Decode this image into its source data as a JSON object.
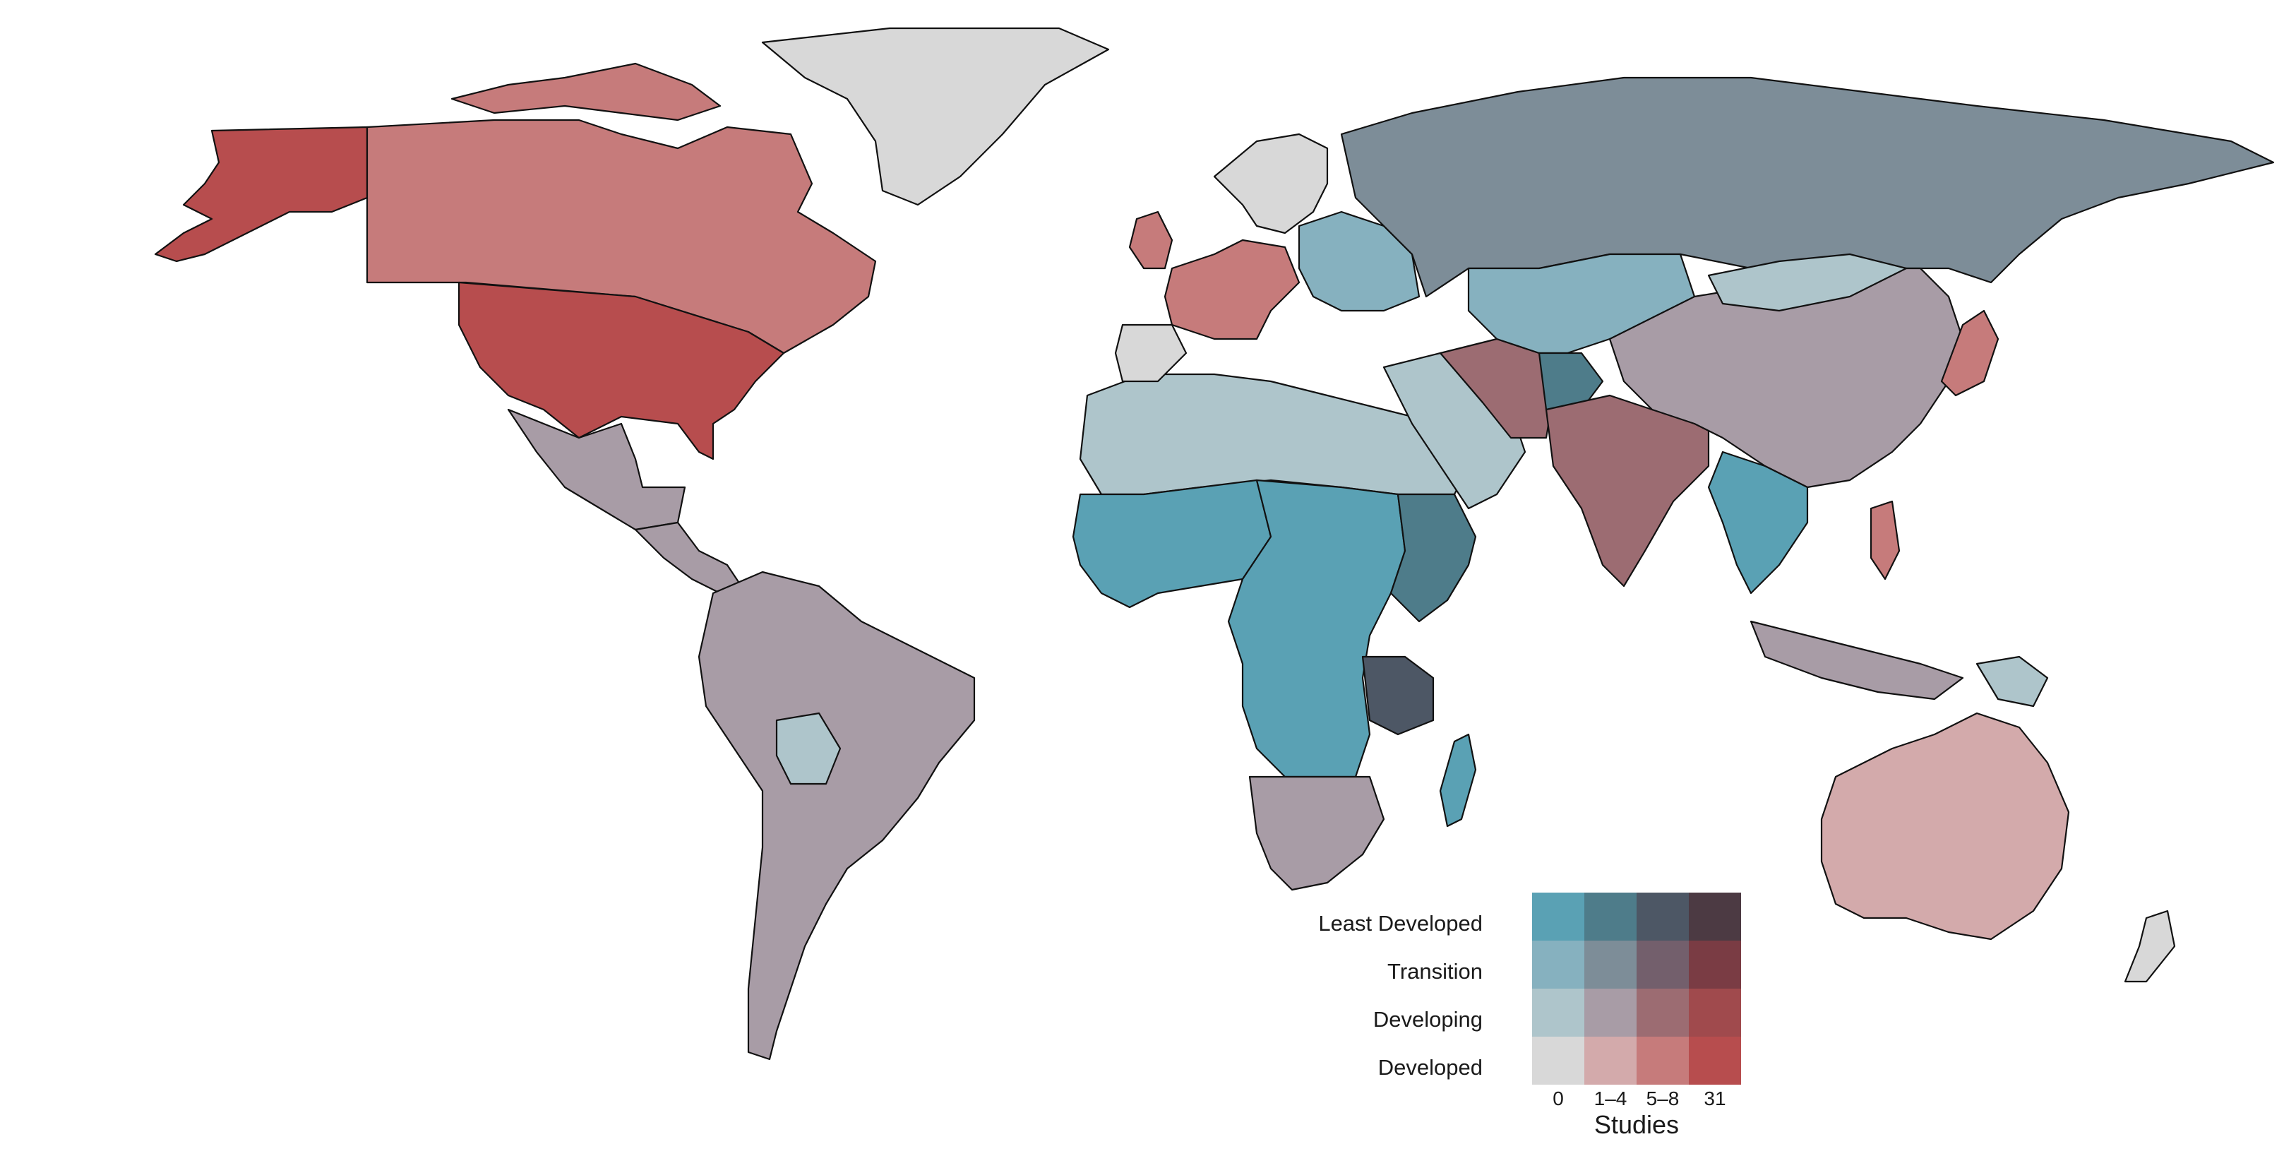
{
  "legend": {
    "title": "Studies",
    "rows": [
      "Least Developed",
      "Transition",
      "Developing",
      "Developed"
    ],
    "columns": [
      "0",
      "1–4",
      "5–8",
      "31"
    ],
    "colors": [
      [
        "#5aa1b4",
        "#4e7c8a",
        "#4d5765",
        "#4c3a43"
      ],
      [
        "#86b1bf",
        "#7d8d98",
        "#735f6c",
        "#7a3c44"
      ],
      [
        "#aec5cb",
        "#a89ca6",
        "#9c6c72",
        "#a04a4d"
      ],
      [
        "#d8d8d8",
        "#d3aaab",
        "#c67b7b",
        "#b74d4e"
      ]
    ]
  },
  "regions": [
    {
      "name": "alaska",
      "fill": "#b74d4e"
    },
    {
      "name": "canada",
      "fill": "#c67b7b"
    },
    {
      "name": "usa",
      "fill": "#b74d4e"
    },
    {
      "name": "mexico",
      "fill": "#a89ca6"
    },
    {
      "name": "central-america",
      "fill": "#a89ca6"
    },
    {
      "name": "greenland",
      "fill": "#d8d8d8"
    },
    {
      "name": "south-america",
      "fill": "#a89ca6"
    },
    {
      "name": "bolivia",
      "fill": "#aec5cb"
    },
    {
      "name": "north-africa",
      "fill": "#aec5cb"
    },
    {
      "name": "west-africa",
      "fill": "#5aa1b4"
    },
    {
      "name": "central-africa",
      "fill": "#5aa1b4"
    },
    {
      "name": "east-africa",
      "fill": "#4e7c8a"
    },
    {
      "name": "tanzania",
      "fill": "#4d5765"
    },
    {
      "name": "southern-africa",
      "fill": "#a89ca6"
    },
    {
      "name": "madagascar",
      "fill": "#5aa1b4"
    },
    {
      "name": "western-europe",
      "fill": "#c67b7b"
    },
    {
      "name": "northern-europe",
      "fill": "#d8d8d8"
    },
    {
      "name": "eastern-europe",
      "fill": "#86b1bf"
    },
    {
      "name": "russia",
      "fill": "#7d8d98"
    },
    {
      "name": "middle-east",
      "fill": "#aec5cb"
    },
    {
      "name": "iran",
      "fill": "#9c6c72"
    },
    {
      "name": "central-asia",
      "fill": "#86b1bf"
    },
    {
      "name": "afghanistan",
      "fill": "#4e7c8a"
    },
    {
      "name": "india",
      "fill": "#9c6c72"
    },
    {
      "name": "china",
      "fill": "#a89ca6"
    },
    {
      "name": "mongolia",
      "fill": "#aec5cb"
    },
    {
      "name": "southeast-asia",
      "fill": "#5aa1b4"
    },
    {
      "name": "japan",
      "fill": "#c67b7b"
    },
    {
      "name": "indonesia",
      "fill": "#a89ca6"
    },
    {
      "name": "australia",
      "fill": "#d3aaab"
    },
    {
      "name": "new-zealand",
      "fill": "#d8d8d8"
    },
    {
      "name": "uk",
      "fill": "#c67b7b"
    }
  ]
}
